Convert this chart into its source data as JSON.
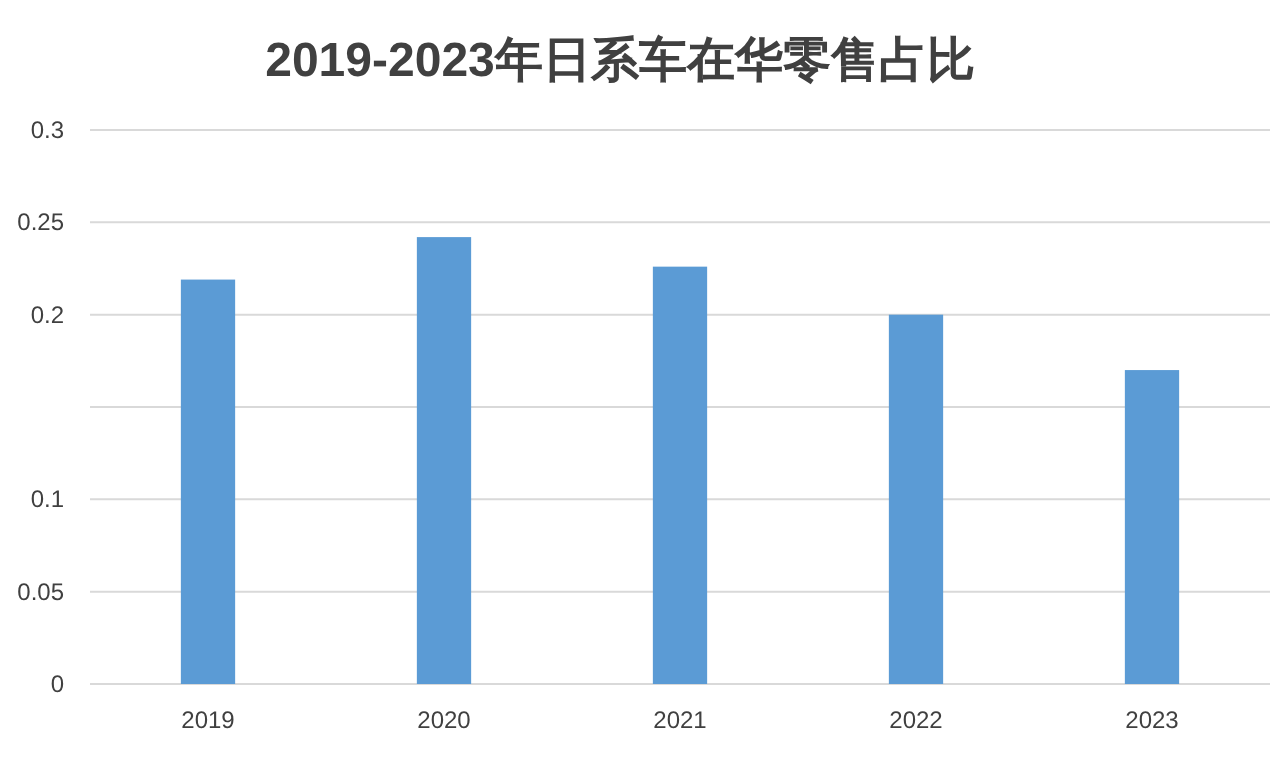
{
  "chart_data": {
    "type": "bar",
    "title": "2019-2023年日系车在华零售占比",
    "categories": [
      "2019",
      "2020",
      "2021",
      "2022",
      "2023"
    ],
    "values": [
      0.219,
      0.242,
      0.226,
      0.2,
      0.17
    ],
    "color": "#5b9bd5",
    "ylim": [
      0,
      0.3
    ],
    "yticks": [
      0,
      0.05,
      0.1,
      {
        "value": 0.15,
        "label": null
      },
      0.2,
      0.25,
      0.3
    ],
    "grid": "y"
  }
}
